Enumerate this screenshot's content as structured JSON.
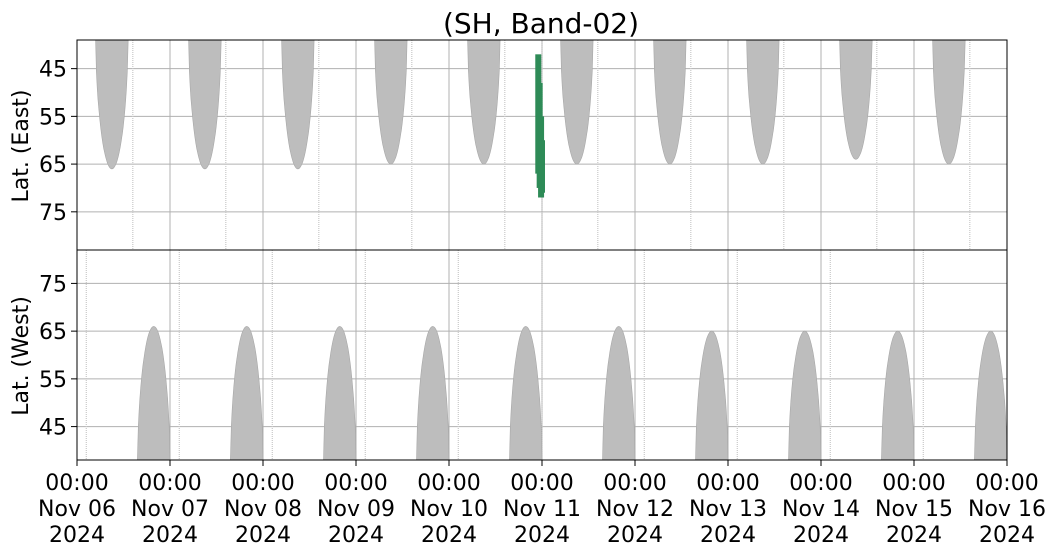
{
  "chart_data": {
    "type": "heatmap",
    "title": "(SH, Band-02)",
    "panels": [
      {
        "id": "east",
        "ylabel": "Lat. (East)",
        "yticks": [
          45,
          55,
          65,
          75
        ],
        "ylim": [
          39,
          83
        ],
        "y_inverted": true
      },
      {
        "id": "west",
        "ylabel": "Lat. (West)",
        "yticks": [
          75,
          65,
          55,
          45
        ],
        "ylim": [
          38,
          82
        ],
        "y_inverted": false
      }
    ],
    "x_ticks": [
      {
        "line1": "00:00",
        "line2": "Nov 06",
        "line3": "2024",
        "day": 0
      },
      {
        "line1": "00:00",
        "line2": "Nov 07",
        "line3": "2024",
        "day": 1
      },
      {
        "line1": "00:00",
        "line2": "Nov 08",
        "line3": "2024",
        "day": 2
      },
      {
        "line1": "00:00",
        "line2": "Nov 09",
        "line3": "2024",
        "day": 3
      },
      {
        "line1": "00:00",
        "line2": "Nov 10",
        "line3": "2024",
        "day": 4
      },
      {
        "line1": "00:00",
        "line2": "Nov 11",
        "line3": "2024",
        "day": 5
      },
      {
        "line1": "00:00",
        "line2": "Nov 12",
        "line3": "2024",
        "day": 6
      },
      {
        "line1": "00:00",
        "line2": "Nov 13",
        "line3": "2024",
        "day": 7
      },
      {
        "line1": "00:00",
        "line2": "Nov 14",
        "line3": "2024",
        "day": 8
      },
      {
        "line1": "00:00",
        "line2": "Nov 15",
        "line3": "2024",
        "day": 9
      },
      {
        "line1": "00:00",
        "line2": "Nov 16",
        "line3": "2024",
        "day": 10
      }
    ],
    "xlim_days": [
      0,
      10
    ],
    "grid": true,
    "colors": {
      "coverage": "#bdbdbd",
      "detection": "#2e8b57"
    },
    "east_coverage": [
      {
        "start": 0.2,
        "end": 0.55,
        "maxlat": 66
      },
      {
        "start": 1.2,
        "end": 1.55,
        "maxlat": 66
      },
      {
        "start": 2.2,
        "end": 2.55,
        "maxlat": 66
      },
      {
        "start": 3.2,
        "end": 3.55,
        "maxlat": 65
      },
      {
        "start": 4.2,
        "end": 4.55,
        "maxlat": 65
      },
      {
        "start": 5.2,
        "end": 5.55,
        "maxlat": 65
      },
      {
        "start": 6.2,
        "end": 6.55,
        "maxlat": 65
      },
      {
        "start": 7.2,
        "end": 7.55,
        "maxlat": 65
      },
      {
        "start": 8.2,
        "end": 8.55,
        "maxlat": 64
      },
      {
        "start": 9.2,
        "end": 9.55,
        "maxlat": 65
      }
    ],
    "west_coverage": [
      {
        "start": 0.65,
        "end": 1.0,
        "maxlat": 66
      },
      {
        "start": 1.65,
        "end": 2.0,
        "maxlat": 66
      },
      {
        "start": 2.65,
        "end": 3.0,
        "maxlat": 66
      },
      {
        "start": 3.65,
        "end": 4.0,
        "maxlat": 66
      },
      {
        "start": 4.65,
        "end": 5.0,
        "maxlat": 66
      },
      {
        "start": 5.65,
        "end": 6.0,
        "maxlat": 66
      },
      {
        "start": 6.65,
        "end": 7.0,
        "maxlat": 65
      },
      {
        "start": 7.65,
        "end": 8.0,
        "maxlat": 65
      },
      {
        "start": 8.65,
        "end": 9.0,
        "maxlat": 65
      },
      {
        "start": 9.65,
        "end": 10.0,
        "maxlat": 65
      }
    ],
    "east_detection": [
      {
        "day": 4.96,
        "lat_min": 42,
        "lat_max": 67
      },
      {
        "day": 4.975,
        "lat_min": 48,
        "lat_max": 70
      },
      {
        "day": 4.99,
        "lat_min": 55,
        "lat_max": 72
      },
      {
        "day": 5.0,
        "lat_min": 60,
        "lat_max": 71
      }
    ],
    "east_vertical_lines": [
      0.6,
      1.6,
      2.6,
      3.6,
      4.6,
      5.0,
      5.6,
      6.6,
      7.6,
      8.6,
      9.6
    ],
    "west_vertical_lines": [
      0.1,
      1.1,
      2.1,
      3.1,
      4.1,
      5.0,
      6.1,
      7.1,
      8.1,
      9.1
    ]
  }
}
